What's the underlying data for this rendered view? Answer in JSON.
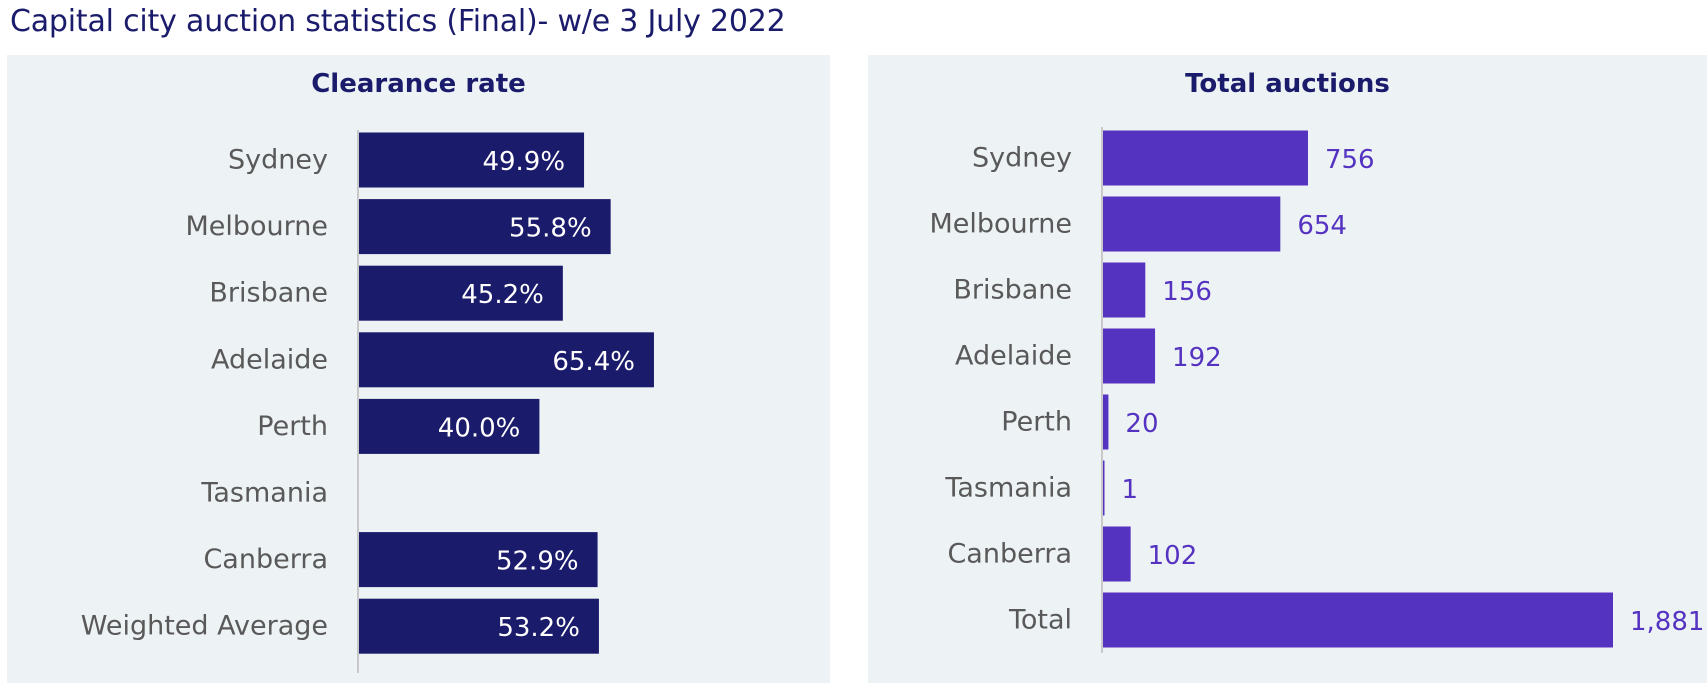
{
  "page": {
    "title": "Capital city auction statistics (Final)- w/e 3 July 2022"
  },
  "colors": {
    "clearance_bar": "#1b1b6b",
    "auctions_bar": "#5533c1",
    "panel_background": "#edf2f5",
    "axis_line": "#c8c8c8"
  },
  "chart_data": [
    {
      "type": "bar",
      "orientation": "horizontal",
      "title": "Clearance rate",
      "categories": [
        "Sydney",
        "Melbourne",
        "Brisbane",
        "Adelaide",
        "Perth",
        "Tasmania",
        "Canberra",
        "Weighted Average"
      ],
      "values": [
        49.9,
        55.8,
        45.2,
        65.4,
        40.0,
        null,
        52.9,
        53.2
      ],
      "data_labels": [
        "49.9%",
        "55.8%",
        "45.2%",
        "65.4%",
        "40.0%",
        "",
        "52.9%",
        "53.2%"
      ],
      "label_position": "inside-end",
      "xlim": [
        0,
        100
      ],
      "grid": false,
      "legend": "none"
    },
    {
      "type": "bar",
      "orientation": "horizontal",
      "title": "Total auctions",
      "categories": [
        "Sydney",
        "Melbourne",
        "Brisbane",
        "Adelaide",
        "Perth",
        "Tasmania",
        "Canberra",
        "Total"
      ],
      "values": [
        756,
        654,
        156,
        192,
        20,
        1,
        102,
        1881
      ],
      "data_labels": [
        "756",
        "654",
        "156",
        "192",
        "20",
        "1",
        "102",
        "1,881"
      ],
      "label_position": "outside-end",
      "xlim": [
        0,
        1881
      ],
      "grid": false,
      "legend": "none"
    }
  ]
}
